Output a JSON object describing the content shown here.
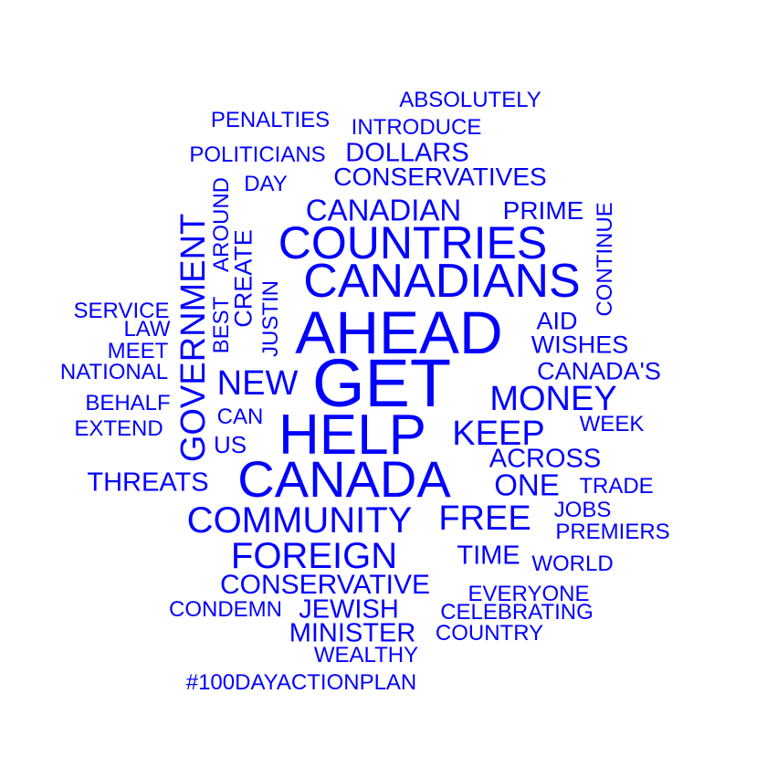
{
  "color": "#0000ff",
  "words": [
    {
      "text": "GET",
      "weight": 74
    },
    {
      "text": "AHEAD",
      "weight": 66
    },
    {
      "text": "HELP",
      "weight": 62
    },
    {
      "text": "CANADA",
      "weight": 56
    },
    {
      "text": "CANADIANS",
      "weight": 52
    },
    {
      "text": "COUNTRIES",
      "weight": 50
    },
    {
      "text": "COMMUNITY",
      "weight": 40
    },
    {
      "text": "FOREIGN",
      "weight": 40
    },
    {
      "text": "GOVERNMENT",
      "weight": 38
    },
    {
      "text": "MONEY",
      "weight": 38
    },
    {
      "text": "FREE",
      "weight": 38
    },
    {
      "text": "NEW",
      "weight": 38
    },
    {
      "text": "KEEP",
      "weight": 38
    },
    {
      "text": "CANADIAN",
      "weight": 33
    },
    {
      "text": "ONE",
      "weight": 33
    },
    {
      "text": "CONSERVATIVE",
      "weight": 30
    },
    {
      "text": "ACROSS",
      "weight": 29
    },
    {
      "text": "THREATS",
      "weight": 29
    },
    {
      "text": "TIME",
      "weight": 29
    },
    {
      "text": "MINISTER",
      "weight": 29
    },
    {
      "text": "JEWISH",
      "weight": 29
    },
    {
      "text": "DOLLARS",
      "weight": 29
    },
    {
      "text": "CONSERVATIVES",
      "weight": 28
    },
    {
      "text": "PRIME",
      "weight": 28
    },
    {
      "text": "CANADA'S",
      "weight": 27
    },
    {
      "text": "WISHES",
      "weight": 27
    },
    {
      "text": "AID",
      "weight": 27
    },
    {
      "text": "CREATE",
      "weight": 27
    },
    {
      "text": "US",
      "weight": 26
    },
    {
      "text": "EVERYONE",
      "weight": 24
    },
    {
      "text": "WORLD",
      "weight": 24
    },
    {
      "text": "TRADE",
      "weight": 24
    },
    {
      "text": "PREMIERS",
      "weight": 24
    },
    {
      "text": "CAN",
      "weight": 24
    },
    {
      "text": "ABSOLUTELY",
      "weight": 24
    },
    {
      "text": "INTRODUCE",
      "weight": 24
    },
    {
      "text": "PENALTIES",
      "weight": 24
    },
    {
      "text": "POLITICIANS",
      "weight": 24
    },
    {
      "text": "CELEBRATING",
      "weight": 24
    },
    {
      "text": "COUNTRY",
      "weight": 24
    },
    {
      "text": "CONDEMN",
      "weight": 24
    },
    {
      "text": "WEALTHY",
      "weight": 24
    },
    {
      "text": "#100DAYACTIONPLAN",
      "weight": 24
    },
    {
      "text": "JOBS",
      "weight": 24
    },
    {
      "text": "WEEK",
      "weight": 24
    },
    {
      "text": "NATIONAL",
      "weight": 24
    },
    {
      "text": "BEHALF",
      "weight": 24
    },
    {
      "text": "EXTEND",
      "weight": 24
    },
    {
      "text": "SERVICE",
      "weight": 24
    },
    {
      "text": "LAW",
      "weight": 24
    },
    {
      "text": "MEET",
      "weight": 24
    },
    {
      "text": "DAY",
      "weight": 24
    },
    {
      "text": "AROUND",
      "weight": 24
    },
    {
      "text": "BEST",
      "weight": 24
    },
    {
      "text": "JUSTIN",
      "weight": 24
    },
    {
      "text": "CONTINUE",
      "weight": 24
    }
  ]
}
